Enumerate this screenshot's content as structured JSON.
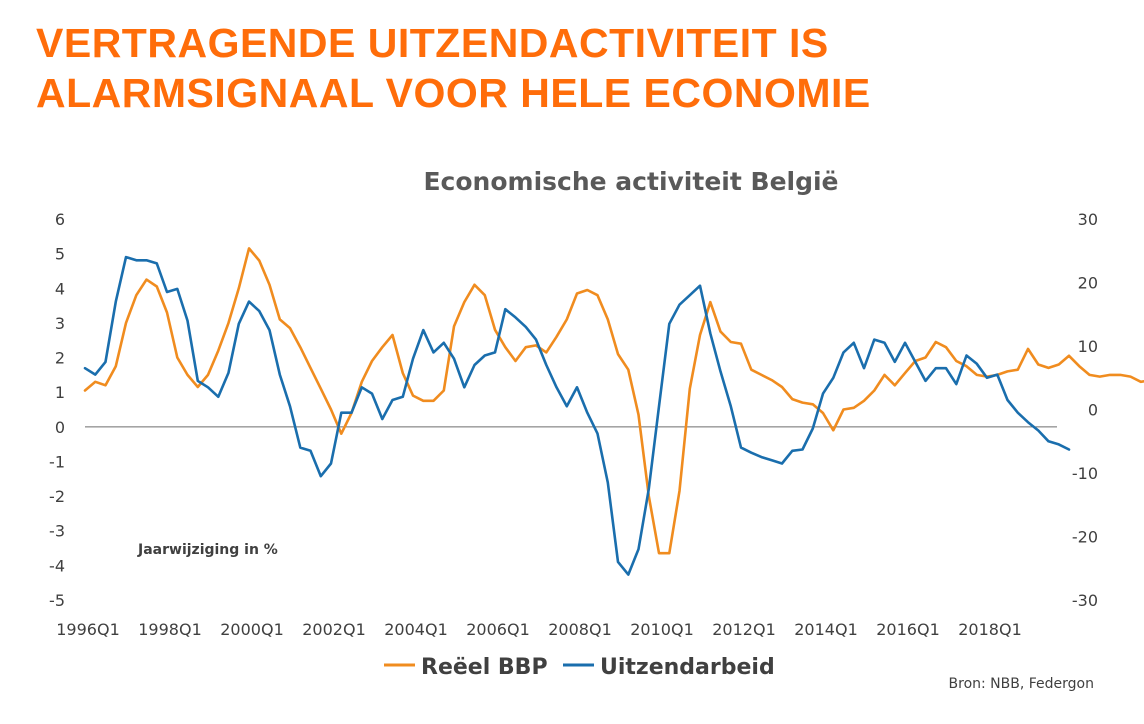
{
  "slide": {
    "title_line1": "VERTRAGENDE UITZENDACTIVITEIT IS",
    "title_line2": "ALARMSIGNAAL VOOR HELE ECONOMIE",
    "source": "Bron: NBB, Federgon"
  },
  "chart_data": {
    "type": "line",
    "title": "Economische activiteit België",
    "annotation": "Jaarwijziging in %",
    "y_left": {
      "min": -5,
      "max": 6,
      "ticks": [
        6,
        5,
        4,
        3,
        2,
        1,
        0,
        -1,
        -2,
        -3,
        -4,
        -5
      ]
    },
    "y_right": {
      "min": -30,
      "max": 30,
      "ticks": [
        30,
        20,
        10,
        0,
        -10,
        -20,
        -30
      ]
    },
    "x_ticks": [
      "1996Q1",
      "1998Q1",
      "2000Q1",
      "2002Q1",
      "2004Q1",
      "2006Q1",
      "2008Q1",
      "2010Q1",
      "2012Q1",
      "2014Q1",
      "2016Q1",
      "2018Q1"
    ],
    "grid": "zero-line",
    "legend_position": "bottom",
    "series": [
      {
        "name": "Reëel BBP",
        "axis": "left",
        "color": "#f08c1f",
        "start": "1996Q1",
        "values": [
          1.05,
          1.3,
          1.2,
          1.75,
          3.0,
          3.8,
          4.25,
          4.05,
          3.3,
          2.0,
          1.5,
          1.15,
          1.5,
          2.2,
          3.0,
          4.0,
          5.15,
          4.8,
          4.1,
          3.1,
          2.85,
          2.3,
          1.7,
          1.1,
          0.5,
          -0.2,
          0.4,
          1.3,
          1.9,
          2.3,
          2.65,
          1.55,
          0.9,
          0.75,
          0.75,
          1.05,
          2.9,
          3.6,
          4.1,
          3.8,
          2.8,
          2.3,
          1.9,
          2.3,
          2.35,
          2.15,
          2.6,
          3.1,
          3.85,
          3.95,
          3.8,
          3.1,
          2.1,
          1.65,
          0.35,
          -2.0,
          -3.65,
          -3.65,
          -1.85,
          1.1,
          2.65,
          3.6,
          2.75,
          2.45,
          2.4,
          1.65,
          1.5,
          1.35,
          1.15,
          0.8,
          0.7,
          0.65,
          0.4,
          -0.1,
          0.5,
          0.55,
          0.75,
          1.05,
          1.5,
          1.2,
          1.55,
          1.9,
          2.0,
          2.45,
          2.3,
          1.9,
          1.75,
          1.5,
          1.45,
          1.5,
          1.6,
          1.65,
          2.25,
          1.8,
          1.7,
          1.8,
          2.05,
          1.75,
          1.5,
          1.45,
          1.5,
          1.5,
          1.45,
          1.3,
          1.35,
          1.6
        ]
      },
      {
        "name": "Uitzendarbeid",
        "axis": "right",
        "color": "#1a6ead",
        "start": "1996Q1",
        "values": [
          6.5,
          5.5,
          7.5,
          17.0,
          24.0,
          23.5,
          23.5,
          23.0,
          18.5,
          19.0,
          14.0,
          4.5,
          3.5,
          2.0,
          5.8,
          13.5,
          17.0,
          15.5,
          12.5,
          5.5,
          0.5,
          -6.0,
          -6.5,
          -10.5,
          -8.5,
          -0.5,
          -0.5,
          3.5,
          2.5,
          -1.5,
          1.5,
          2.0,
          8.0,
          12.5,
          9.0,
          10.5,
          8.0,
          3.5,
          7.0,
          8.5,
          9.0,
          15.8,
          14.5,
          13.0,
          11.0,
          7.0,
          3.5,
          0.5,
          3.5,
          -0.5,
          -3.8,
          -11.5,
          -24.0,
          -26.0,
          -22.0,
          -12.5,
          0.5,
          13.5,
          16.5,
          18.0,
          19.5,
          12.0,
          6.0,
          0.5,
          -6.0,
          -6.8,
          -7.5,
          -8.0,
          -8.5,
          -6.5,
          -6.3,
          -3.0,
          2.5,
          5.0,
          9.0,
          10.5,
          6.5,
          11.0,
          10.5,
          7.5,
          10.5,
          7.5,
          4.5,
          6.5,
          6.5,
          4.0,
          8.5,
          7.2,
          5.0,
          5.5,
          1.5,
          -0.5,
          -2.0,
          -3.3,
          -5.0,
          -5.5,
          -6.3
        ]
      }
    ]
  }
}
